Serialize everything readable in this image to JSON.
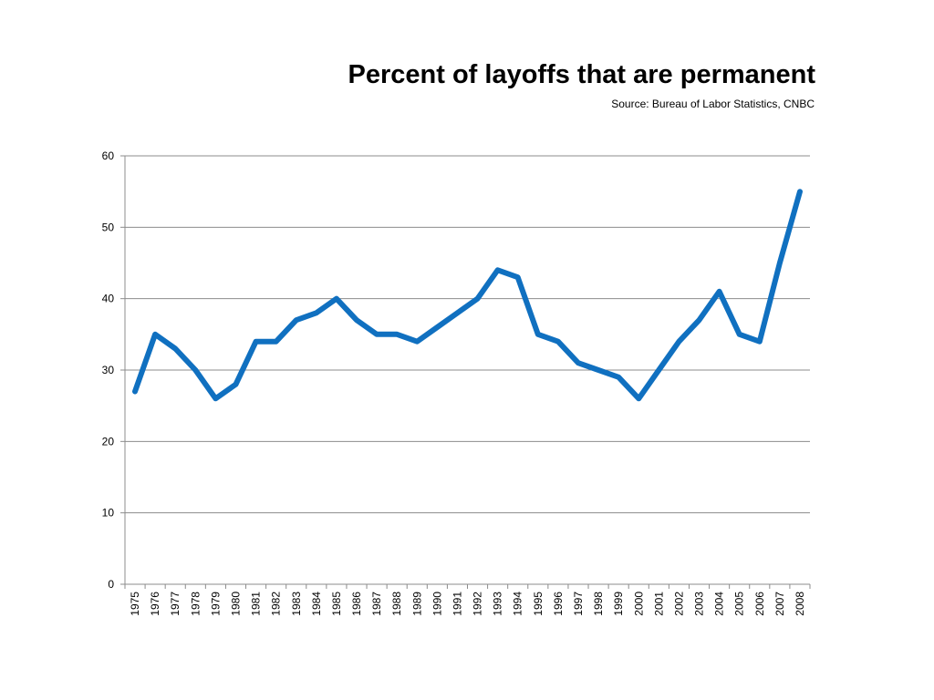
{
  "chart_data": {
    "type": "line",
    "title": "Percent of layoffs that are permanent",
    "subtitle": "Source: Bureau of Labor Statistics, CNBC",
    "xlabel": "",
    "ylabel": "",
    "categories": [
      "1975",
      "1976",
      "1977",
      "1978",
      "1979",
      "1980",
      "1981",
      "1982",
      "1983",
      "1984",
      "1985",
      "1986",
      "1987",
      "1988",
      "1989",
      "1990",
      "1991",
      "1992",
      "1993",
      "1994",
      "1995",
      "1996",
      "1997",
      "1998",
      "1999",
      "2000",
      "2001",
      "2002",
      "2003",
      "2004",
      "2005",
      "2006",
      "2007",
      "2008"
    ],
    "series": [
      {
        "values": [
          27,
          35,
          33,
          30,
          26,
          28,
          34,
          34,
          37,
          38,
          40,
          37,
          35,
          35,
          34,
          36,
          38,
          40,
          44,
          43,
          35,
          34,
          31,
          30,
          29,
          26,
          30,
          34,
          37,
          41,
          35,
          34,
          45,
          55
        ],
        "color": "#1070c0"
      }
    ],
    "ylim": [
      0,
      60
    ],
    "yticks": [
      "0",
      "10",
      "20",
      "30",
      "40",
      "50",
      "60"
    ],
    "grid": true,
    "legend": "none",
    "colors": {
      "line": "#1070c0",
      "grid": "#8c8c8c",
      "axis": "#8c8c8c"
    }
  }
}
